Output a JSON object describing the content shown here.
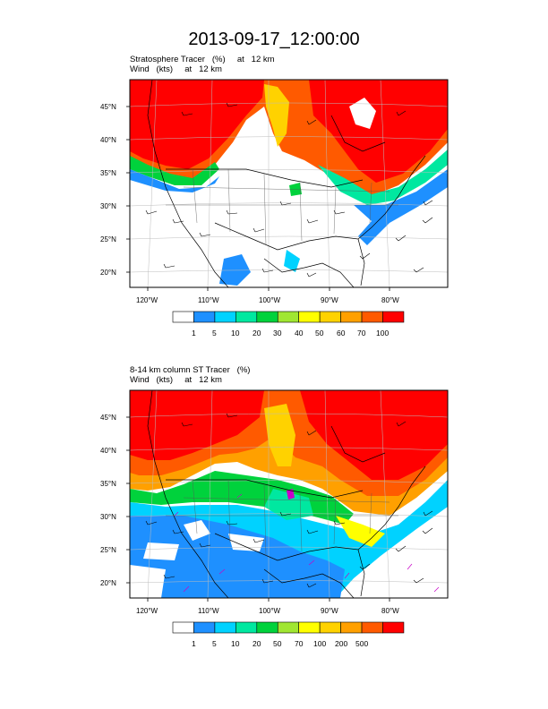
{
  "title": "2013-09-17_12:00:00",
  "panels": [
    {
      "subtitle1": "Stratosphere Tracer   (%)     at   12 km",
      "subtitle2": "Wind   (kts)     at   12 km",
      "lat_labels": [
        "45°N",
        "40°N",
        "35°N",
        "30°N",
        "25°N",
        "20°N"
      ],
      "lon_labels": [
        "120°W",
        "110°W",
        "100°W",
        "90°W",
        "80°W"
      ],
      "colorbar_labels": [
        "1",
        "5",
        "10",
        "20",
        "30",
        "40",
        "50",
        "60",
        "70",
        "100"
      ]
    },
    {
      "subtitle1": "8-14 km column ST Tracer   (%)",
      "subtitle2": "Wind   (kts)     at   12 km",
      "lat_labels": [
        "45°N",
        "40°N",
        "35°N",
        "30°N",
        "25°N",
        "20°N"
      ],
      "lon_labels": [
        "120°W",
        "110°W",
        "100°W",
        "90°W",
        "80°W"
      ],
      "colorbar_labels": [
        "1",
        "5",
        "10",
        "20",
        "50",
        "70",
        "100",
        "200",
        "500"
      ]
    }
  ],
  "colors": {
    "bins": [
      "#ffffff",
      "#1e90ff",
      "#00d2ff",
      "#00e8a0",
      "#00d23c",
      "#a0e632",
      "#ffff00",
      "#ffd200",
      "#ffa000",
      "#ff5a00",
      "#ff0000"
    ]
  }
}
